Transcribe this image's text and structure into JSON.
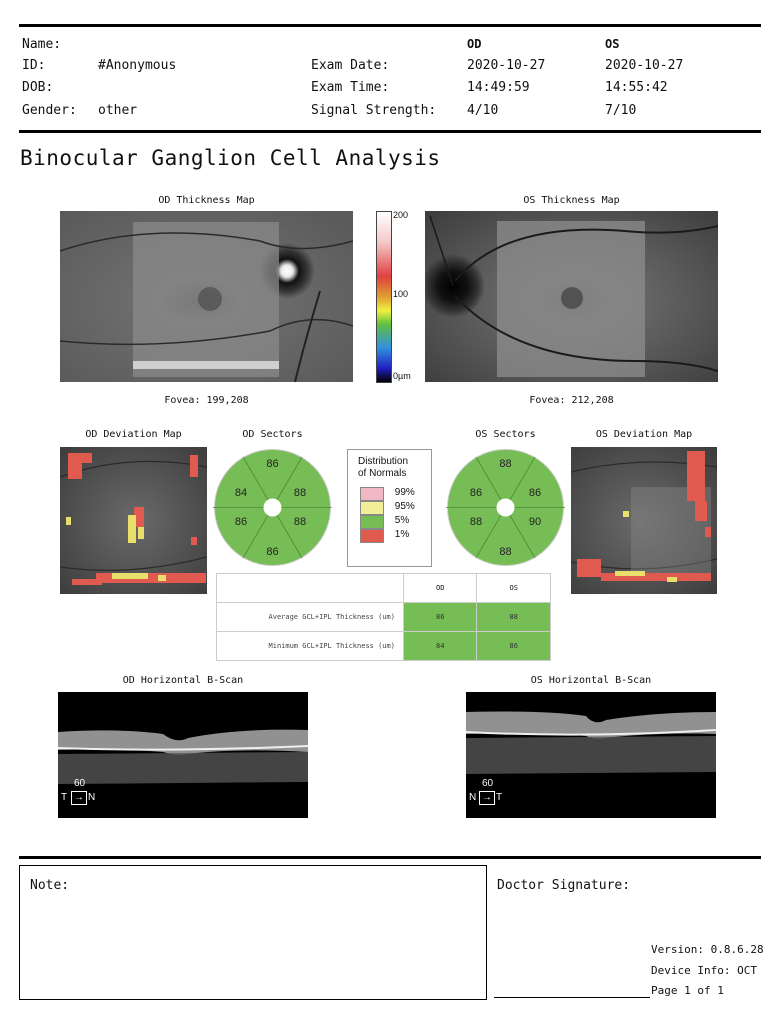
{
  "header": {
    "name_label": "Name:",
    "id_label": "ID:",
    "id_value": "#Anonymous",
    "dob_label": "DOB:",
    "gender_label": "Gender:",
    "gender_value": "other",
    "exam_date_label": "Exam Date:",
    "exam_time_label": "Exam Time:",
    "signal_label": "Signal Strength:",
    "od": {
      "eye": "OD",
      "date": "2020-10-27",
      "time": "14:49:59",
      "signal": "4/10"
    },
    "os": {
      "eye": "OS",
      "date": "2020-10-27",
      "time": "14:55:42",
      "signal": "7/10"
    }
  },
  "title": "Binocular Ganglion Cell Analysis",
  "thickness": {
    "od_title": "OD Thickness Map",
    "os_title": "OS Thickness Map",
    "od_fovea": "Fovea: 199,208",
    "os_fovea": "Fovea: 212,208",
    "scale_max": "200",
    "scale_mid": "100",
    "scale_min": "0µm"
  },
  "deviation": {
    "od_title": "OD Deviation Map",
    "os_title": "OS Deviation Map",
    "od_sectors_title": "OD Sectors",
    "os_sectors_title": "OS Sectors"
  },
  "od_sectors": {
    "top": "86",
    "top_left": "84",
    "top_right": "88",
    "bottom_left": "86",
    "bottom_right": "88",
    "bottom": "86"
  },
  "os_sectors": {
    "top": "88",
    "top_left": "86",
    "top_right": "86",
    "bottom_left": "88",
    "bottom_right": "90",
    "bottom": "88"
  },
  "legend": {
    "title_line1": "Distribution",
    "title_line2": "of Normals",
    "items": [
      {
        "label": "99%",
        "color": "#f2b8c6"
      },
      {
        "label": "95%",
        "color": "#f0ee98"
      },
      {
        "label": "5%",
        "color": "#77bd55"
      },
      {
        "label": "1%",
        "color": "#e05a50"
      }
    ]
  },
  "table": {
    "col_od": "OD",
    "col_os": "OS",
    "rows": [
      {
        "label": "Average GCL+IPL Thickness (um)",
        "od": "86",
        "os": "88"
      },
      {
        "label": "Minimum GCL+IPL Thickness (um)",
        "od": "84",
        "os": "86"
      }
    ]
  },
  "bscan": {
    "od_title": "OD Horizontal B-Scan",
    "os_title": "OS Horizontal B-Scan",
    "od_scale": "60",
    "od_left": "T",
    "od_right": "N",
    "os_scale": "60",
    "os_left": "N",
    "os_right": "T"
  },
  "footer": {
    "note_label": "Note:",
    "signature_label": "Doctor Signature:",
    "version": "Version: 0.8.6.28",
    "device": "Device Info: OCT",
    "page": "Page 1 of 1"
  },
  "colors": {
    "normal_green": "#77bd55",
    "abnormal_red": "#e05a50",
    "borderline_yellow": "#f0ee98"
  }
}
